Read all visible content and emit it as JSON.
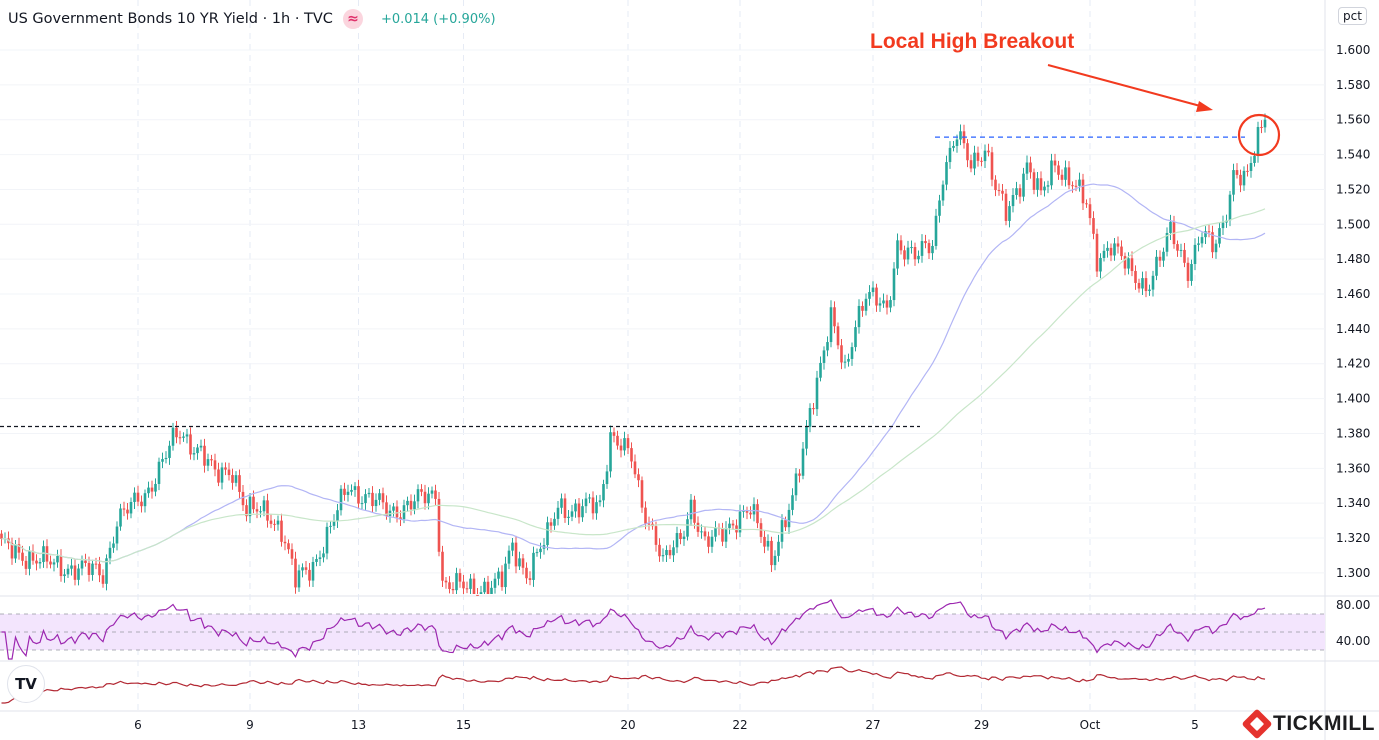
{
  "header": {
    "title": "US Government Bonds 10 YR Yield · 1h · TVC",
    "badge_icon": "approx-equal-icon",
    "change": "+0.014 (+0.90%)"
  },
  "unit_label": "pct",
  "annotation": {
    "text": "Local High Breakout",
    "color": "#f23a1f"
  },
  "brand": {
    "name": "TICKMILL",
    "tv_logo": "TV"
  },
  "colors": {
    "up": "#26a69a",
    "down": "#ef5350",
    "rsi": "#9c27b0",
    "rsi_band": "#f3e5fd",
    "indicator2": "#b22833",
    "ma_fast": "#b2b5f5",
    "ma_slow": "#c8e6c9"
  },
  "chart_data": {
    "type": "candlestick",
    "title": "US Government Bonds 10 YR Yield · 1h · TVC",
    "ylim": [
      1.29,
      1.62
    ],
    "y_ticks": [
      "1.600",
      "1.580",
      "1.560",
      "1.540",
      "1.520",
      "1.500",
      "1.480",
      "1.460",
      "1.440",
      "1.420",
      "1.400",
      "1.380",
      "1.360",
      "1.340",
      "1.320",
      "1.300"
    ],
    "x_ticks": [
      "6",
      "9",
      "13",
      "15",
      "20",
      "22",
      "27",
      "29",
      "Oct",
      "5"
    ],
    "x_tick_bars": [
      39,
      71,
      102,
      132,
      179,
      211,
      249,
      280,
      311,
      341
    ],
    "close_path_bar_value": [
      [
        0,
        1.315
      ],
      [
        14,
        1.305
      ],
      [
        29,
        1.3
      ],
      [
        33,
        1.33
      ],
      [
        41,
        1.345
      ],
      [
        49,
        1.375
      ],
      [
        51,
        1.38
      ],
      [
        57,
        1.37
      ],
      [
        61,
        1.355
      ],
      [
        66,
        1.36
      ],
      [
        70,
        1.335
      ],
      [
        76,
        1.335
      ],
      [
        80,
        1.325
      ],
      [
        84,
        1.295
      ],
      [
        89,
        1.305
      ],
      [
        94,
        1.325
      ],
      [
        99,
        1.35
      ],
      [
        103,
        1.345
      ],
      [
        111,
        1.335
      ],
      [
        117,
        1.34
      ],
      [
        124,
        1.345
      ],
      [
        126,
        1.295
      ],
      [
        134,
        1.29
      ],
      [
        143,
        1.295
      ],
      [
        146,
        1.315
      ],
      [
        150,
        1.3
      ],
      [
        156,
        1.32
      ],
      [
        159,
        1.34
      ],
      [
        164,
        1.335
      ],
      [
        171,
        1.34
      ],
      [
        174,
        1.38
      ],
      [
        180,
        1.365
      ],
      [
        183,
        1.34
      ],
      [
        187,
        1.32
      ],
      [
        189,
        1.305
      ],
      [
        194,
        1.32
      ],
      [
        197,
        1.34
      ],
      [
        201,
        1.315
      ],
      [
        209,
        1.33
      ],
      [
        214,
        1.335
      ],
      [
        220,
        1.31
      ],
      [
        226,
        1.34
      ],
      [
        229,
        1.37
      ],
      [
        231,
        1.395
      ],
      [
        234,
        1.42
      ],
      [
        237,
        1.445
      ],
      [
        241,
        1.415
      ],
      [
        244,
        1.445
      ],
      [
        247,
        1.46
      ],
      [
        253,
        1.45
      ],
      [
        256,
        1.49
      ],
      [
        261,
        1.48
      ],
      [
        266,
        1.49
      ],
      [
        269,
        1.53
      ],
      [
        273,
        1.55
      ],
      [
        277,
        1.535
      ],
      [
        281,
        1.545
      ],
      [
        284,
        1.52
      ],
      [
        287,
        1.505
      ],
      [
        293,
        1.535
      ],
      [
        297,
        1.515
      ],
      [
        301,
        1.535
      ],
      [
        306,
        1.525
      ],
      [
        310,
        1.51
      ],
      [
        313,
        1.48
      ],
      [
        317,
        1.49
      ],
      [
        323,
        1.47
      ],
      [
        327,
        1.465
      ],
      [
        331,
        1.48
      ],
      [
        334,
        1.495
      ],
      [
        339,
        1.475
      ],
      [
        343,
        1.495
      ],
      [
        346,
        1.485
      ],
      [
        349,
        1.5
      ],
      [
        352,
        1.53
      ],
      [
        356,
        1.525
      ],
      [
        359,
        1.55
      ],
      [
        361,
        1.56
      ]
    ],
    "levels": [
      {
        "value": 1.384,
        "style": "dashed",
        "color": "#131722"
      },
      {
        "value": 1.55,
        "style": "dashed",
        "color": "#2962ff"
      }
    ],
    "rsi": {
      "band": [
        30,
        70
      ],
      "ticks": [
        "80.00",
        "40.00"
      ]
    },
    "grid": true
  }
}
